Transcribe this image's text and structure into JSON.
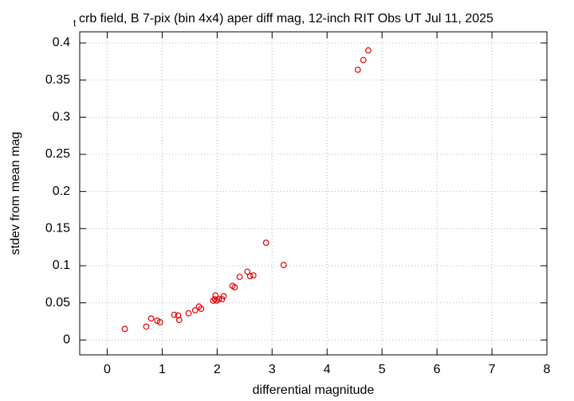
{
  "chart_data": {
    "type": "scatter",
    "title_subscript": "t",
    "title": "crb field, B 7-pix (bin 4x4) aper diff mag,  12-inch RIT Obs UT Jul 11, 2025",
    "x_label": "differential magnitude",
    "y_label": "stdev from mean mag",
    "color": "#e00000",
    "grid": true,
    "xlim": [
      -0.5,
      8
    ],
    "xticks": [
      0,
      1,
      2,
      3,
      4,
      5,
      6,
      7,
      8
    ],
    "ylim": [
      -0.02,
      0.415
    ],
    "yticks": [
      0,
      0.05,
      0.1,
      0.15,
      0.2,
      0.25,
      0.3,
      0.35,
      0.4
    ],
    "x": [
      0.32,
      0.71,
      0.8,
      0.91,
      0.96,
      1.22,
      1.29,
      1.31,
      1.48,
      1.6,
      1.67,
      1.71,
      1.93,
      1.97,
      1.96,
      1.99,
      2.03,
      2.09,
      2.12,
      2.28,
      2.32,
      2.41,
      2.55,
      2.6,
      2.66,
      2.89,
      3.21,
      4.56,
      4.66,
      4.75
    ],
    "values": [
      0.015,
      0.018,
      0.029,
      0.026,
      0.024,
      0.034,
      0.033,
      0.027,
      0.036,
      0.04,
      0.045,
      0.042,
      0.053,
      0.06,
      0.055,
      0.053,
      0.055,
      0.055,
      0.059,
      0.073,
      0.071,
      0.085,
      0.092,
      0.086,
      0.087,
      0.131,
      0.101,
      0.364,
      0.377,
      0.39
    ]
  }
}
